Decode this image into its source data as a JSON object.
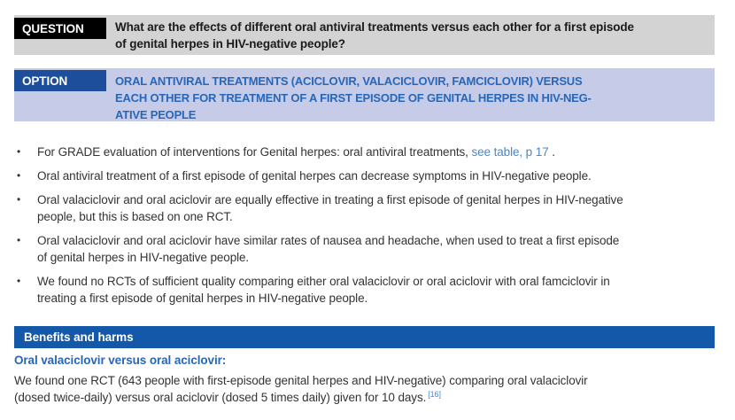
{
  "document": {
    "question": {
      "label": "QUESTION",
      "text_lines": [
        "What are the effects of different oral antiviral treatments versus each other for a first episode",
        "of genital herpes in HIV-negative people?"
      ]
    },
    "option": {
      "label": "OPTION",
      "title_lines": [
        "ORAL ANTIVIRAL TREATMENTS (ACICLOVIR, VALACICLOVIR, FAMCICLOVIR) VERSUS",
        "EACH OTHER FOR TREATMENT OF A FIRST EPISODE OF GENITAL HERPES IN HIV-NEG-",
        "ATIVE PEOPLE"
      ]
    },
    "bullet_glyph": "•",
    "key_points": [
      {
        "pre": "For GRADE evaluation of interventions for Genital herpes: oral antiviral treatments, ",
        "link": "see table, p 17",
        "post": " ."
      },
      {
        "lines": [
          "Oral antiviral treatment of a first episode of genital herpes can decrease symptoms in HIV-negative people."
        ]
      },
      {
        "lines": [
          "Oral valaciclovir and oral aciclovir are equally effective in treating a first episode of genital herpes in HIV-negative",
          "people, but this is based on one RCT."
        ]
      },
      {
        "lines": [
          "Oral valaciclovir and oral aciclovir have similar rates of nausea and headache, when used to treat a first episode",
          "of genital herpes in HIV-negative people."
        ]
      },
      {
        "lines": [
          "We found no RCTs of sufficient quality comparing either oral valaciclovir or oral aciclovir with oral famciclovir in",
          "treating a first episode of genital herpes in HIV-negative people."
        ]
      }
    ],
    "section_header": "Benefits and harms",
    "subsection": {
      "heading": "Oral valaciclovir versus oral aciclovir:",
      "body_lines": [
        "We found one RCT (643 people with first-episode genital herpes and HIV-negative) comparing oral valaciclovir",
        "(dosed twice-daily) versus oral aciclovir (dosed 5 times daily) given for 10 days."
      ],
      "reference": "[16]"
    },
    "colors": {
      "question_label_bg": "#000000",
      "question_bar_bg": "#d3d3d3",
      "option_label_bg": "#1d4e9b",
      "option_bar_bg": "#c6cce7",
      "option_title_text": "#2766b8",
      "section_bar_bg": "#1459a9",
      "subheading_text": "#2766b8",
      "link_text": "#4c87c9",
      "body_text": "#333333"
    }
  }
}
